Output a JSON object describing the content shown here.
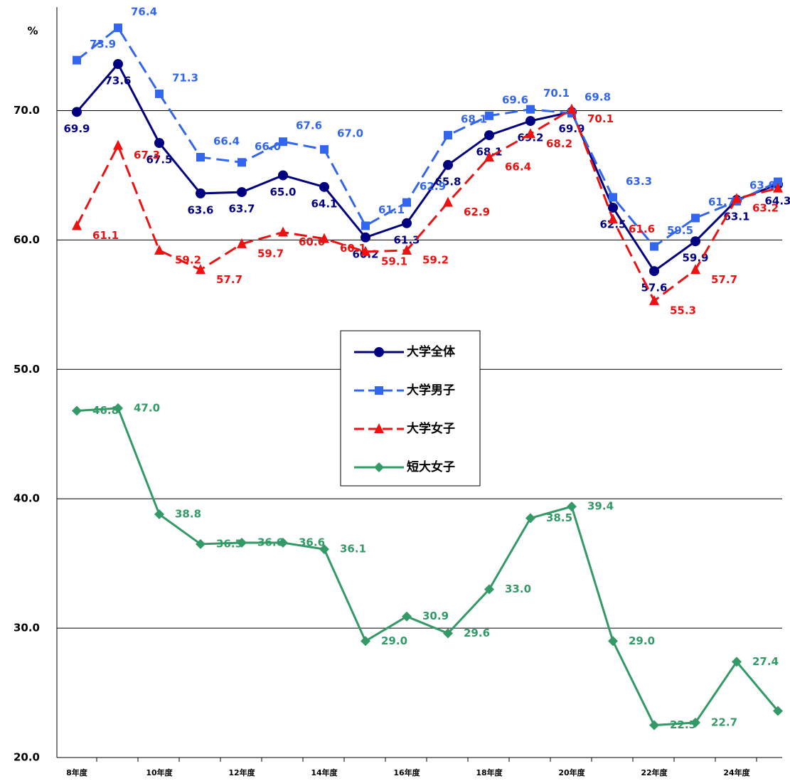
{
  "chart_data": {
    "type": "line",
    "y_label": "%",
    "categories": [
      "8年度",
      null,
      "10年度",
      null,
      "12年度",
      null,
      "14年度",
      null,
      "16年度",
      null,
      "18年度",
      null,
      "20年度",
      null,
      "22年度",
      null,
      "24年度",
      null
    ],
    "ylim": [
      20,
      78
    ],
    "yticks": [
      {
        "value": 20,
        "label": "20.0"
      },
      {
        "value": 30,
        "label": "30.0"
      },
      {
        "value": 40,
        "label": "40.0"
      },
      {
        "value": 50,
        "label": "50.0"
      },
      {
        "value": 60,
        "label": "60.0"
      },
      {
        "value": 70,
        "label": "70.0"
      }
    ],
    "grid": true,
    "legend": "center",
    "series": [
      {
        "name": "大学全体",
        "color": "#000080",
        "marker": "circle",
        "dash": false,
        "values": [
          69.9,
          73.6,
          67.5,
          63.6,
          63.7,
          65.0,
          64.1,
          60.2,
          61.3,
          65.8,
          68.1,
          69.2,
          69.9,
          62.5,
          57.6,
          59.9,
          63.1,
          64.3
        ],
        "value_labels": [
          "69.9",
          "73.6",
          "67.5",
          "63.6",
          "63.7",
          "65.0",
          "64.1",
          "60.2",
          "61.3",
          "65.8",
          "68.1",
          "69.2",
          "69.9",
          "62.5",
          "57.6",
          "59.9",
          "63.1",
          "64.3"
        ]
      },
      {
        "name": "大学男子",
        "color": "#3366ee",
        "marker": "square",
        "dash": true,
        "values": [
          73.9,
          76.4,
          71.3,
          66.4,
          66.0,
          67.6,
          67.0,
          61.1,
          62.9,
          68.1,
          69.6,
          70.1,
          69.8,
          63.3,
          59.5,
          61.7,
          63.0,
          64.5
        ],
        "value_labels": [
          "73.9",
          "76.4",
          "71.3",
          "66.4",
          "66.0",
          "67.6",
          "67.0",
          "61.1",
          "62.9",
          "68.1",
          "69.6",
          "70.1",
          "69.8",
          "63.3",
          "59.5",
          "61.7",
          "63.0",
          "64.5"
        ]
      },
      {
        "name": "大学女子",
        "color": "#ee1111",
        "marker": "triangle",
        "dash": true,
        "values": [
          61.1,
          67.3,
          59.2,
          57.7,
          59.7,
          60.6,
          60.1,
          59.1,
          59.2,
          62.9,
          66.4,
          68.2,
          70.1,
          61.6,
          55.3,
          57.7,
          63.2,
          64.0
        ],
        "value_labels": [
          "61.1",
          "67.3",
          "59.2",
          "57.7",
          "59.7",
          "60.6",
          "60.1",
          "59.1",
          "59.2",
          "62.9",
          "66.4",
          "68.2",
          "70.1",
          "61.6",
          "55.3",
          "57.7",
          "63.2",
          "64.0"
        ]
      },
      {
        "name": "短大女子",
        "color": "#339966",
        "marker": "diamond",
        "dash": false,
        "values": [
          46.8,
          47.0,
          38.8,
          36.5,
          36.6,
          36.6,
          36.1,
          29.0,
          30.9,
          29.6,
          33.0,
          38.5,
          39.4,
          29.0,
          22.5,
          22.7,
          27.4,
          23.6
        ],
        "value_labels": [
          "46.8",
          "47.0",
          "38.8",
          "36.5",
          "36.6",
          "36.6",
          "36.1",
          "29.0",
          "30.9",
          "29.6",
          "33.0",
          "38.5",
          "39.4",
          "29.0",
          "22.5",
          "22.7",
          "27.4",
          "23.6"
        ]
      }
    ]
  }
}
